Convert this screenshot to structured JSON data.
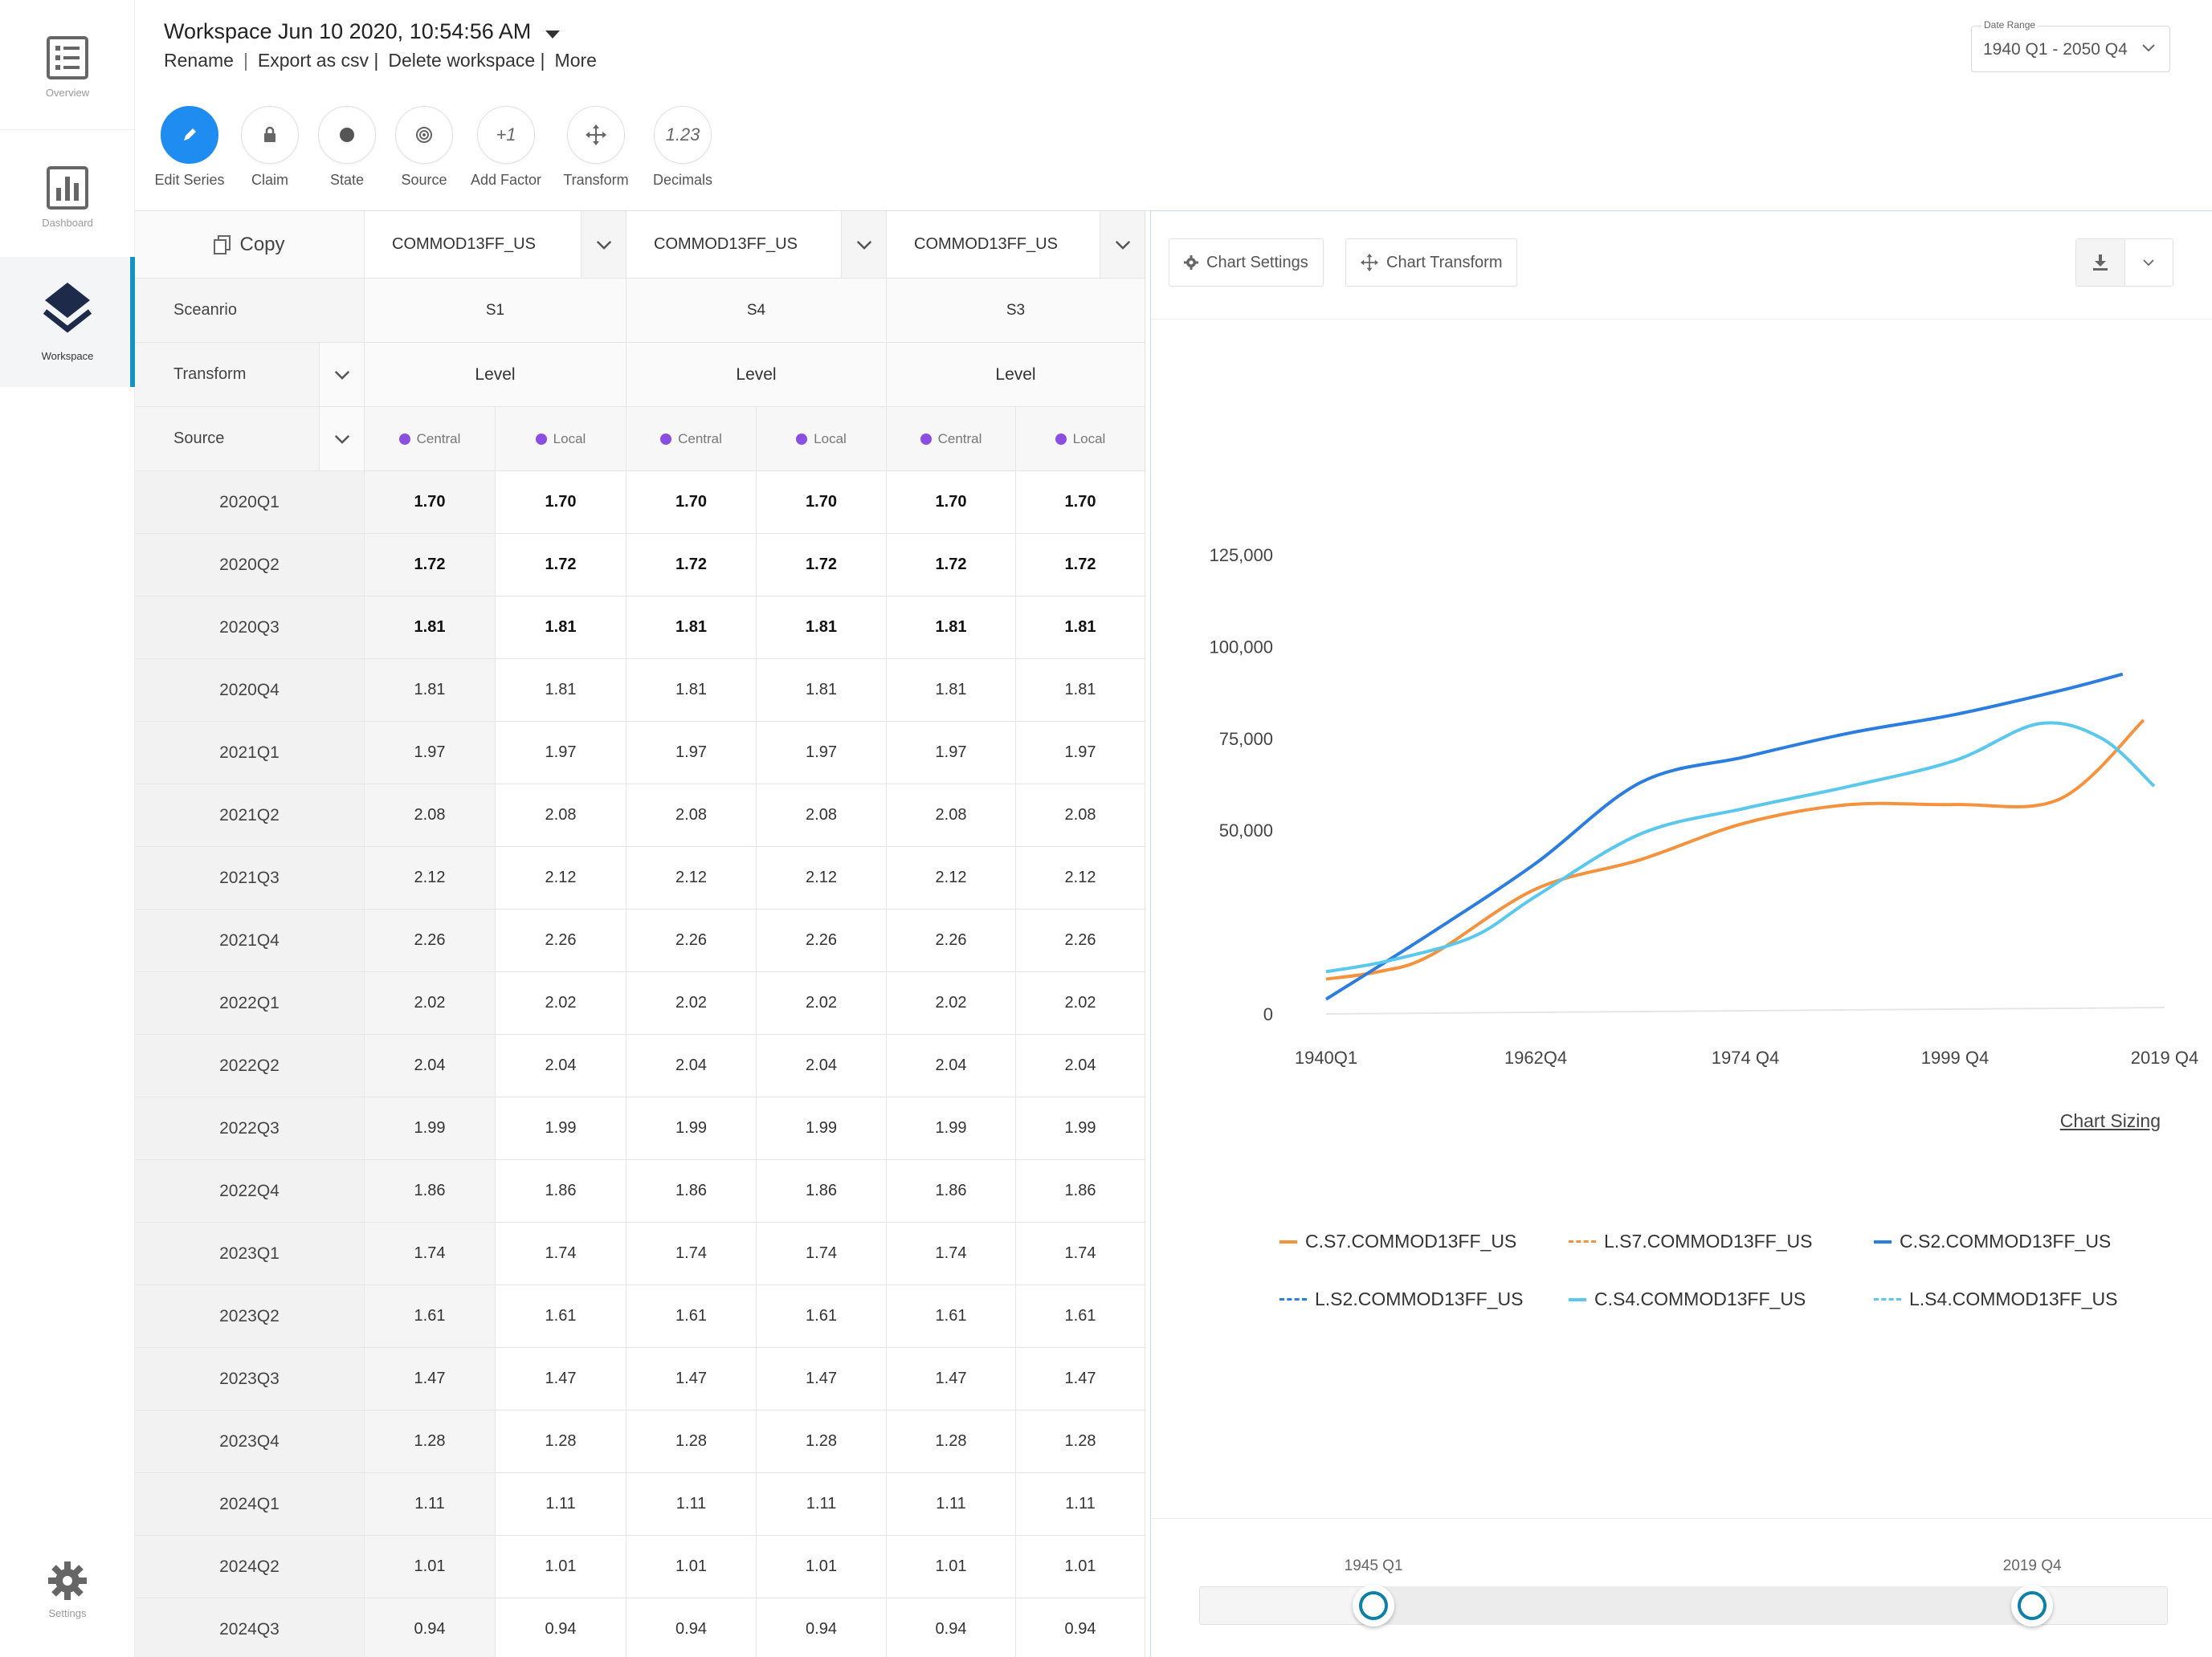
{
  "sidebar": {
    "items": [
      {
        "label": "Overview",
        "icon": "overview-icon"
      },
      {
        "label": "Dashboard",
        "icon": "dashboard-icon"
      },
      {
        "label": "Workspace",
        "icon": "layers-icon",
        "active": true
      },
      {
        "label": "Settings",
        "icon": "gear-icon"
      }
    ]
  },
  "header": {
    "title": "Workspace Jun 10 2020, 10:54:56 AM",
    "links": {
      "rename": "Rename",
      "sep1": "|",
      "export": "Export as csv |",
      "delete": "Delete workspace |",
      "more": "More"
    },
    "date_range": {
      "label": "Date Range",
      "value": "1940 Q1 - 2050 Q4"
    }
  },
  "toolbar": {
    "tools": [
      {
        "label": "Edit Series",
        "icon": "pencil-icon"
      },
      {
        "label": "Claim",
        "icon": "lock-icon"
      },
      {
        "label": "State",
        "icon": "dot-icon"
      },
      {
        "label": "Source",
        "icon": "target-icon"
      },
      {
        "label": "Add Factor",
        "glyph": "+1"
      },
      {
        "label": "Transform",
        "icon": "move-icon"
      },
      {
        "label": "Decimals",
        "glyph": "1.23"
      }
    ]
  },
  "grid": {
    "copy_label": "Copy",
    "row_labels": {
      "scenario": "Sceanrio",
      "transform": "Transform",
      "source": "Source"
    },
    "columns": [
      {
        "series": "COMMOD13FF_US",
        "scenario": "S1",
        "transform": "Level"
      },
      {
        "series": "COMMOD13FF_US",
        "scenario": "S4",
        "transform": "Level"
      },
      {
        "series": "COMMOD13FF_US",
        "scenario": "S3",
        "transform": "Level"
      }
    ],
    "sources": [
      "Central",
      "Local"
    ],
    "rows": [
      {
        "period": "2020Q1",
        "value": "1.70"
      },
      {
        "period": "2020Q2",
        "value": "1.72"
      },
      {
        "period": "2020Q3",
        "value": "1.81"
      },
      {
        "period": "2020Q4",
        "value": "1.81"
      },
      {
        "period": "2021Q1",
        "value": "1.97"
      },
      {
        "period": "2021Q2",
        "value": "2.08"
      },
      {
        "period": "2021Q3",
        "value": "2.12"
      },
      {
        "period": "2021Q4",
        "value": "2.26"
      },
      {
        "period": "2022Q1",
        "value": "2.02"
      },
      {
        "period": "2022Q2",
        "value": "2.04"
      },
      {
        "period": "2022Q3",
        "value": "1.99"
      },
      {
        "period": "2022Q4",
        "value": "1.86"
      },
      {
        "period": "2023Q1",
        "value": "1.74"
      },
      {
        "period": "2023Q2",
        "value": "1.61"
      },
      {
        "period": "2023Q3",
        "value": "1.47"
      },
      {
        "period": "2023Q4",
        "value": "1.28"
      },
      {
        "period": "2024Q1",
        "value": "1.11"
      },
      {
        "period": "2024Q2",
        "value": "1.01"
      },
      {
        "period": "2024Q3",
        "value": "0.94"
      }
    ]
  },
  "chart_panel": {
    "settings_label": "Chart Settings",
    "transform_label": "Chart Transform",
    "sizing_label": "Chart Sizing",
    "range": {
      "start_label": "1945 Q1",
      "end_label": "2019 Q4",
      "start_fraction": 0.18,
      "end_fraction": 0.86
    }
  },
  "chart_data": {
    "type": "line",
    "title": "",
    "xlabel": "",
    "ylabel": "",
    "categories": [
      "1940Q1",
      "1962Q4",
      "1974 Q4",
      "1999 Q4",
      "2019 Q4"
    ],
    "x": [
      0,
      1,
      2,
      3,
      4
    ],
    "ylim": [
      0,
      125000
    ],
    "yticks": [
      0,
      50000,
      75000,
      100000,
      125000
    ],
    "ytick_labels": [
      "0",
      "50,000",
      "75,000",
      "100,000",
      "125,000"
    ],
    "grid": false,
    "legend_position": "bottom",
    "series": [
      {
        "name": "C.S7.COMMOD13FF_US",
        "color": "#f5923e",
        "dashed": false,
        "points": [
          [
            0,
            9500
          ],
          [
            0.25,
            11500
          ],
          [
            0.5,
            16000
          ],
          [
            1,
            34000
          ],
          [
            1.5,
            42000
          ],
          [
            2,
            52000
          ],
          [
            2.5,
            57000
          ],
          [
            3,
            57000
          ],
          [
            3.5,
            58500
          ],
          [
            3.9,
            80000
          ]
        ]
      },
      {
        "name": "L.S7.COMMOD13FF_US",
        "color": "#f5923e",
        "dashed": true,
        "points": []
      },
      {
        "name": "C.S2.COMMOD13FF_US",
        "color": "#2b7de0",
        "dashed": false,
        "points": [
          [
            0,
            4000
          ],
          [
            0.5,
            22000
          ],
          [
            1,
            41000
          ],
          [
            1.5,
            63000
          ],
          [
            2,
            70000
          ],
          [
            2.5,
            76500
          ],
          [
            3,
            81500
          ],
          [
            3.5,
            88000
          ],
          [
            3.8,
            92500
          ]
        ]
      },
      {
        "name": "L.S2.COMMOD13FF_US",
        "color": "#2b7de0",
        "dashed": true,
        "points": []
      },
      {
        "name": "C.S4.COMMOD13FF_US",
        "color": "#5ac8ec",
        "dashed": false,
        "points": [
          [
            0,
            11500
          ],
          [
            0.3,
            14500
          ],
          [
            0.7,
            21000
          ],
          [
            1,
            32000
          ],
          [
            1.5,
            49000
          ],
          [
            2,
            56000
          ],
          [
            2.5,
            62000
          ],
          [
            3,
            69000
          ],
          [
            3.4,
            79000
          ],
          [
            3.7,
            75000
          ],
          [
            3.95,
            62000
          ]
        ]
      },
      {
        "name": "L.S4.COMMOD13FF_US",
        "color": "#5ac8ec",
        "dashed": true,
        "points": []
      }
    ]
  }
}
